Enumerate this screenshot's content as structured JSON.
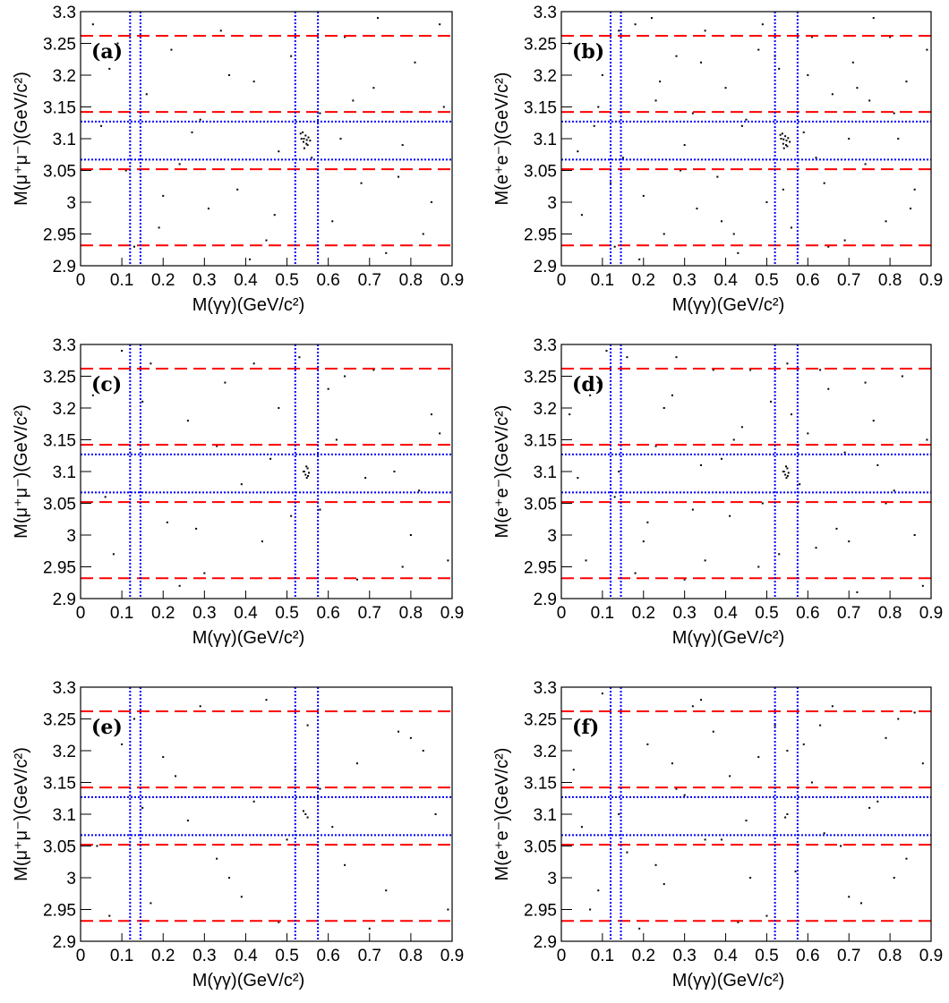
{
  "chart_data": [
    {
      "type": "scatter",
      "panel_label": "(a)",
      "xlabel": "M(γγ)(GeV/c²)",
      "ylabel": "M(μ⁺μ⁻)(GeV/c²)",
      "color": "#000000",
      "xlim": [
        0,
        0.9
      ],
      "ylim": [
        2.9,
        3.3
      ],
      "xticks": [
        0,
        0.1,
        0.2,
        0.3,
        0.4,
        0.5,
        0.6,
        0.7,
        0.8,
        0.9
      ],
      "yticks": [
        2.9,
        2.95,
        3,
        3.05,
        3.1,
        3.15,
        3.2,
        3.25,
        3.3
      ],
      "hlines": [
        {
          "value": 2.932,
          "color": "#ff0000",
          "style": "dashed"
        },
        {
          "value": 3.052,
          "color": "#ff0000",
          "style": "dashed"
        },
        {
          "value": 3.142,
          "color": "#ff0000",
          "style": "dashed"
        },
        {
          "value": 3.262,
          "color": "#ff0000",
          "style": "dashed"
        },
        {
          "value": 3.067,
          "color": "#0000ff",
          "style": "dotted"
        },
        {
          "value": 3.127,
          "color": "#0000ff",
          "style": "dotted"
        }
      ],
      "vlines": [
        {
          "value": 0.12,
          "color": "#0000ff",
          "style": "dotted"
        },
        {
          "value": 0.145,
          "color": "#0000ff",
          "style": "dotted"
        },
        {
          "value": 0.52,
          "color": "#0000ff",
          "style": "dotted"
        },
        {
          "value": 0.575,
          "color": "#0000ff",
          "style": "dotted"
        }
      ],
      "x": [
        0.03,
        0.07,
        0.11,
        0.16,
        0.19,
        0.22,
        0.27,
        0.31,
        0.34,
        0.38,
        0.42,
        0.45,
        0.48,
        0.51,
        0.58,
        0.61,
        0.64,
        0.68,
        0.71,
        0.74,
        0.78,
        0.81,
        0.85,
        0.88,
        0.05,
        0.13,
        0.24,
        0.36,
        0.47,
        0.63,
        0.72,
        0.83,
        0.09,
        0.29,
        0.41,
        0.56,
        0.66,
        0.77,
        0.87,
        0.2,
        0.535,
        0.54,
        0.545,
        0.55,
        0.538,
        0.548,
        0.552,
        0.542,
        0.556,
        0.533,
        0.547,
        0.541
      ],
      "y": [
        3.28,
        3.21,
        3.05,
        3.17,
        2.96,
        3.24,
        3.11,
        2.99,
        3.27,
        3.02,
        3.19,
        2.94,
        3.08,
        3.23,
        3.14,
        2.97,
        3.26,
        3.03,
        3.18,
        2.92,
        3.09,
        3.22,
        3.0,
        3.15,
        3.12,
        2.93,
        3.06,
        3.2,
        2.98,
        3.1,
        3.29,
        2.95,
        3.25,
        3.13,
        2.91,
        3.07,
        3.16,
        3.04,
        3.28,
        3.01,
        3.1,
        3.095,
        3.105,
        3.09,
        3.11,
        3.098,
        3.102,
        3.085,
        3.097,
        3.108,
        3.092,
        3.1
      ]
    },
    {
      "type": "scatter",
      "panel_label": "(b)",
      "xlabel": "M(γγ)(GeV/c²)",
      "ylabel": "M(e⁺e⁻)(GeV/c²)",
      "color": "#000000",
      "xlim": [
        0,
        0.9
      ],
      "ylim": [
        2.9,
        3.3
      ],
      "xticks": [
        0,
        0.1,
        0.2,
        0.3,
        0.4,
        0.5,
        0.6,
        0.7,
        0.8,
        0.9
      ],
      "yticks": [
        2.9,
        2.95,
        3,
        3.05,
        3.1,
        3.15,
        3.2,
        3.25,
        3.3
      ],
      "hlines": [
        {
          "value": 2.932,
          "color": "#ff0000",
          "style": "dashed"
        },
        {
          "value": 3.052,
          "color": "#ff0000",
          "style": "dashed"
        },
        {
          "value": 3.142,
          "color": "#ff0000",
          "style": "dashed"
        },
        {
          "value": 3.262,
          "color": "#ff0000",
          "style": "dashed"
        },
        {
          "value": 3.067,
          "color": "#0000ff",
          "style": "dotted"
        },
        {
          "value": 3.127,
          "color": "#0000ff",
          "style": "dotted"
        }
      ],
      "vlines": [
        {
          "value": 0.12,
          "color": "#0000ff",
          "style": "dotted"
        },
        {
          "value": 0.145,
          "color": "#0000ff",
          "style": "dotted"
        },
        {
          "value": 0.52,
          "color": "#0000ff",
          "style": "dotted"
        },
        {
          "value": 0.575,
          "color": "#0000ff",
          "style": "dotted"
        }
      ],
      "x": [
        0.02,
        0.05,
        0.08,
        0.1,
        0.13,
        0.15,
        0.18,
        0.2,
        0.23,
        0.25,
        0.28,
        0.3,
        0.33,
        0.35,
        0.38,
        0.4,
        0.43,
        0.45,
        0.48,
        0.5,
        0.53,
        0.56,
        0.59,
        0.61,
        0.64,
        0.66,
        0.69,
        0.71,
        0.74,
        0.76,
        0.79,
        0.81,
        0.84,
        0.86,
        0.89,
        0.04,
        0.09,
        0.14,
        0.19,
        0.24,
        0.29,
        0.34,
        0.39,
        0.44,
        0.49,
        0.54,
        0.6,
        0.65,
        0.7,
        0.75,
        0.8,
        0.85,
        0.12,
        0.22,
        0.32,
        0.42,
        0.52,
        0.62,
        0.72,
        0.82,
        0.535,
        0.54,
        0.545,
        0.55,
        0.538,
        0.548,
        0.552,
        0.542,
        0.556,
        0.533,
        0.547,
        0.541
      ],
      "y": [
        3.25,
        2.98,
        3.12,
        3.2,
        2.93,
        3.07,
        3.28,
        3.01,
        3.16,
        2.95,
        3.23,
        3.09,
        2.99,
        3.27,
        3.04,
        3.18,
        2.92,
        3.13,
        3.24,
        3.0,
        3.21,
        2.96,
        3.11,
        3.26,
        3.03,
        3.17,
        2.94,
        3.22,
        3.06,
        3.29,
        2.97,
        3.14,
        3.19,
        3.02,
        3.24,
        3.08,
        3.15,
        3.27,
        2.91,
        3.19,
        3.05,
        3.22,
        2.97,
        3.12,
        3.28,
        3.02,
        3.2,
        2.93,
        3.1,
        3.16,
        3.26,
        2.99,
        3.03,
        3.29,
        3.14,
        2.95,
        3.23,
        3.07,
        3.18,
        3.1,
        3.1,
        3.092,
        3.104,
        3.088,
        3.108,
        3.097,
        3.101,
        3.085,
        3.095,
        3.106,
        3.09,
        3.099
      ]
    },
    {
      "type": "scatter",
      "panel_label": "(c)",
      "xlabel": "M(γγ)(GeV/c²)",
      "ylabel": "M(μ⁺μ⁻)(GeV/c²)",
      "color": "#000000",
      "xlim": [
        0,
        0.9
      ],
      "ylim": [
        2.9,
        3.3
      ],
      "xticks": [
        0,
        0.1,
        0.2,
        0.3,
        0.4,
        0.5,
        0.6,
        0.7,
        0.8,
        0.9
      ],
      "yticks": [
        2.9,
        2.95,
        3,
        3.05,
        3.1,
        3.15,
        3.2,
        3.25,
        3.3
      ],
      "hlines": [
        {
          "value": 2.932,
          "color": "#ff0000",
          "style": "dashed"
        },
        {
          "value": 3.052,
          "color": "#ff0000",
          "style": "dashed"
        },
        {
          "value": 3.142,
          "color": "#ff0000",
          "style": "dashed"
        },
        {
          "value": 3.262,
          "color": "#ff0000",
          "style": "dashed"
        },
        {
          "value": 3.067,
          "color": "#0000ff",
          "style": "dotted"
        },
        {
          "value": 3.127,
          "color": "#0000ff",
          "style": "dotted"
        }
      ],
      "vlines": [
        {
          "value": 0.12,
          "color": "#0000ff",
          "style": "dotted"
        },
        {
          "value": 0.145,
          "color": "#0000ff",
          "style": "dotted"
        },
        {
          "value": 0.52,
          "color": "#0000ff",
          "style": "dotted"
        },
        {
          "value": 0.575,
          "color": "#0000ff",
          "style": "dotted"
        }
      ],
      "x": [
        0.03,
        0.08,
        0.12,
        0.17,
        0.21,
        0.26,
        0.3,
        0.35,
        0.39,
        0.44,
        0.48,
        0.53,
        0.58,
        0.62,
        0.67,
        0.71,
        0.76,
        0.8,
        0.85,
        0.89,
        0.06,
        0.15,
        0.24,
        0.33,
        0.42,
        0.51,
        0.6,
        0.69,
        0.78,
        0.87,
        0.1,
        0.28,
        0.46,
        0.64,
        0.82,
        0.54,
        0.545,
        0.55,
        0.548,
        0.542,
        0.553,
        0.547,
        0.551
      ],
      "y": [
        3.22,
        2.97,
        3.13,
        3.27,
        3.02,
        3.18,
        2.94,
        3.24,
        3.08,
        2.99,
        3.2,
        3.28,
        3.04,
        3.15,
        2.93,
        3.26,
        3.1,
        3.0,
        3.19,
        2.96,
        3.06,
        3.21,
        2.92,
        3.14,
        3.27,
        3.03,
        3.23,
        3.09,
        2.95,
        3.16,
        3.29,
        3.01,
        3.12,
        3.25,
        3.07,
        3.1,
        3.095,
        3.105,
        3.09,
        3.1,
        3.098,
        3.108,
        3.093
      ]
    },
    {
      "type": "scatter",
      "panel_label": "(d)",
      "xlabel": "M(γγ)(GeV/c²)",
      "ylabel": "M(e⁺e⁻)(GeV/c²)",
      "color": "#000000",
      "xlim": [
        0,
        0.9
      ],
      "ylim": [
        2.9,
        3.3
      ],
      "xticks": [
        0,
        0.1,
        0.2,
        0.3,
        0.4,
        0.5,
        0.6,
        0.7,
        0.8,
        0.9
      ],
      "yticks": [
        2.9,
        2.95,
        3,
        3.05,
        3.1,
        3.15,
        3.2,
        3.25,
        3.3
      ],
      "hlines": [
        {
          "value": 2.932,
          "color": "#ff0000",
          "style": "dashed"
        },
        {
          "value": 3.052,
          "color": "#ff0000",
          "style": "dashed"
        },
        {
          "value": 3.142,
          "color": "#ff0000",
          "style": "dashed"
        },
        {
          "value": 3.262,
          "color": "#ff0000",
          "style": "dashed"
        },
        {
          "value": 3.067,
          "color": "#0000ff",
          "style": "dotted"
        },
        {
          "value": 3.127,
          "color": "#0000ff",
          "style": "dotted"
        }
      ],
      "vlines": [
        {
          "value": 0.12,
          "color": "#0000ff",
          "style": "dotted"
        },
        {
          "value": 0.145,
          "color": "#0000ff",
          "style": "dotted"
        },
        {
          "value": 0.52,
          "color": "#0000ff",
          "style": "dotted"
        },
        {
          "value": 0.575,
          "color": "#0000ff",
          "style": "dotted"
        }
      ],
      "x": [
        0.02,
        0.06,
        0.09,
        0.13,
        0.16,
        0.2,
        0.23,
        0.27,
        0.3,
        0.34,
        0.37,
        0.41,
        0.44,
        0.48,
        0.51,
        0.55,
        0.58,
        0.62,
        0.65,
        0.69,
        0.72,
        0.76,
        0.79,
        0.83,
        0.86,
        0.89,
        0.04,
        0.11,
        0.18,
        0.25,
        0.32,
        0.39,
        0.46,
        0.53,
        0.6,
        0.67,
        0.74,
        0.81,
        0.88,
        0.07,
        0.14,
        0.21,
        0.28,
        0.35,
        0.42,
        0.49,
        0.56,
        0.63,
        0.7,
        0.77,
        0.54,
        0.545,
        0.55,
        0.548,
        0.542,
        0.553,
        0.547,
        0.551
      ],
      "y": [
        3.19,
        2.96,
        3.24,
        3.06,
        3.28,
        2.99,
        3.14,
        3.22,
        2.93,
        3.11,
        3.26,
        3.03,
        3.17,
        2.95,
        3.21,
        3.27,
        3.08,
        2.98,
        3.23,
        3.13,
        2.91,
        3.18,
        3.05,
        3.25,
        3.0,
        3.15,
        3.09,
        3.29,
        2.94,
        3.2,
        3.04,
        3.12,
        3.26,
        2.97,
        3.16,
        3.01,
        3.24,
        3.07,
        2.92,
        3.22,
        3.1,
        3.02,
        3.28,
        2.96,
        3.15,
        3.05,
        3.19,
        3.26,
        2.99,
        3.11,
        3.1,
        3.095,
        3.105,
        3.09,
        3.1,
        3.098,
        3.108,
        3.093
      ]
    },
    {
      "type": "scatter",
      "panel_label": "(e)",
      "xlabel": "M(γγ)(GeV/c²)",
      "ylabel": "M(μ⁺μ⁻)(GeV/c²)",
      "color": "#000000",
      "xlim": [
        0,
        0.9
      ],
      "ylim": [
        2.9,
        3.3
      ],
      "xticks": [
        0,
        0.1,
        0.2,
        0.3,
        0.4,
        0.5,
        0.6,
        0.7,
        0.8,
        0.9
      ],
      "yticks": [
        2.9,
        2.95,
        3,
        3.05,
        3.1,
        3.15,
        3.2,
        3.25,
        3.3
      ],
      "hlines": [
        {
          "value": 2.932,
          "color": "#ff0000",
          "style": "dashed"
        },
        {
          "value": 3.052,
          "color": "#ff0000",
          "style": "dashed"
        },
        {
          "value": 3.142,
          "color": "#ff0000",
          "style": "dashed"
        },
        {
          "value": 3.262,
          "color": "#ff0000",
          "style": "dashed"
        },
        {
          "value": 3.067,
          "color": "#0000ff",
          "style": "dotted"
        },
        {
          "value": 3.127,
          "color": "#0000ff",
          "style": "dotted"
        }
      ],
      "vlines": [
        {
          "value": 0.12,
          "color": "#0000ff",
          "style": "dotted"
        },
        {
          "value": 0.145,
          "color": "#0000ff",
          "style": "dotted"
        },
        {
          "value": 0.52,
          "color": "#0000ff",
          "style": "dotted"
        },
        {
          "value": 0.575,
          "color": "#0000ff",
          "style": "dotted"
        }
      ],
      "x": [
        0.04,
        0.1,
        0.17,
        0.23,
        0.29,
        0.36,
        0.42,
        0.48,
        0.55,
        0.61,
        0.67,
        0.74,
        0.8,
        0.86,
        0.07,
        0.2,
        0.33,
        0.45,
        0.58,
        0.7,
        0.83,
        0.13,
        0.26,
        0.39,
        0.52,
        0.64,
        0.77,
        0.89,
        0.15,
        0.5,
        0.545,
        0.55,
        0.54
      ],
      "y": [
        3.05,
        3.21,
        2.96,
        3.16,
        3.27,
        3.0,
        3.12,
        2.93,
        3.24,
        3.08,
        3.18,
        2.98,
        3.22,
        3.1,
        2.94,
        3.19,
        3.03,
        3.28,
        3.14,
        2.92,
        3.2,
        3.25,
        3.09,
        2.97,
        3.17,
        3.02,
        3.23,
        2.95,
        3.11,
        3.06,
        3.1,
        3.095,
        3.105
      ]
    },
    {
      "type": "scatter",
      "panel_label": "(f)",
      "xlabel": "M(γγ)(GeV/c²)",
      "ylabel": "M(e⁺e⁻)(GeV/c²)",
      "color": "#000000",
      "xlim": [
        0,
        0.9
      ],
      "ylim": [
        2.9,
        3.3
      ],
      "xticks": [
        0,
        0.1,
        0.2,
        0.3,
        0.4,
        0.5,
        0.6,
        0.7,
        0.8,
        0.9
      ],
      "yticks": [
        2.9,
        2.95,
        3,
        3.05,
        3.1,
        3.15,
        3.2,
        3.25,
        3.3
      ],
      "hlines": [
        {
          "value": 2.932,
          "color": "#ff0000",
          "style": "dashed"
        },
        {
          "value": 3.052,
          "color": "#ff0000",
          "style": "dashed"
        },
        {
          "value": 3.142,
          "color": "#ff0000",
          "style": "dashed"
        },
        {
          "value": 3.262,
          "color": "#ff0000",
          "style": "dashed"
        },
        {
          "value": 3.067,
          "color": "#0000ff",
          "style": "dotted"
        },
        {
          "value": 3.127,
          "color": "#0000ff",
          "style": "dotted"
        }
      ],
      "vlines": [
        {
          "value": 0.12,
          "color": "#0000ff",
          "style": "dotted"
        },
        {
          "value": 0.145,
          "color": "#0000ff",
          "style": "dotted"
        },
        {
          "value": 0.52,
          "color": "#0000ff",
          "style": "dotted"
        },
        {
          "value": 0.575,
          "color": "#0000ff",
          "style": "dotted"
        }
      ],
      "x": [
        0.03,
        0.07,
        0.12,
        0.16,
        0.21,
        0.25,
        0.3,
        0.34,
        0.39,
        0.43,
        0.48,
        0.52,
        0.57,
        0.61,
        0.66,
        0.7,
        0.75,
        0.79,
        0.84,
        0.88,
        0.05,
        0.1,
        0.19,
        0.28,
        0.37,
        0.46,
        0.55,
        0.64,
        0.73,
        0.82,
        0.14,
        0.23,
        0.32,
        0.41,
        0.5,
        0.59,
        0.68,
        0.77,
        0.86,
        0.09,
        0.27,
        0.45,
        0.63,
        0.81,
        0.35,
        0.55,
        0.545
      ],
      "y": [
        3.17,
        2.95,
        3.26,
        3.04,
        3.21,
        2.99,
        3.13,
        3.28,
        3.06,
        2.93,
        3.19,
        3.24,
        3.01,
        3.15,
        3.27,
        2.97,
        3.11,
        3.22,
        3.03,
        3.18,
        3.08,
        3.29,
        2.92,
        3.14,
        3.23,
        3.0,
        3.2,
        3.07,
        2.96,
        3.25,
        3.1,
        3.02,
        3.27,
        3.16,
        2.94,
        3.21,
        3.05,
        3.12,
        3.26,
        2.98,
        3.18,
        3.09,
        3.24,
        3.0,
        3.06,
        3.1,
        3.095
      ]
    }
  ]
}
